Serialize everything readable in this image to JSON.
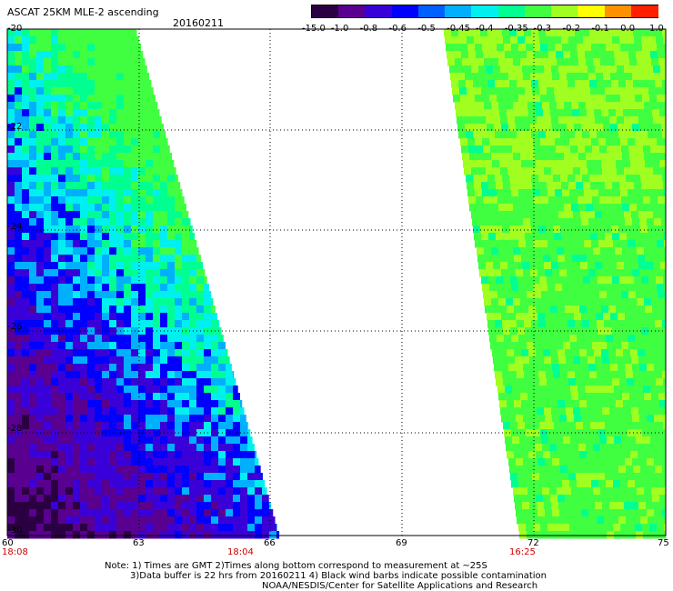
{
  "header": {
    "title": "ASCAT 25KM MLE-2 ascending",
    "date": "20160211"
  },
  "colorbar": {
    "labels": [
      "-15.0",
      "-1.0",
      "-0.8",
      "-0.6",
      "-0.5",
      "-0.45",
      "-0.4",
      "-0.35",
      "-0.3",
      "-0.2",
      "-0.1",
      "0.0",
      "1.0"
    ],
    "colors": [
      "#2a0042",
      "#5a0090",
      "#3a00d8",
      "#0000ff",
      "#0060ff",
      "#00b0ff",
      "#00f0f0",
      "#00ff90",
      "#40ff40",
      "#a0ff20",
      "#ffff00",
      "#ff9000",
      "#ff2000"
    ]
  },
  "axes": {
    "x_ticks": [
      "60",
      "63",
      "66",
      "69",
      "72",
      "75"
    ],
    "y_ticks": [
      "-20",
      "-22",
      "-24",
      "-26",
      "-28",
      "-30"
    ],
    "x_range": [
      60,
      75
    ],
    "y_range": [
      -20,
      -30
    ]
  },
  "times": [
    "18:08",
    "18:04",
    "16:25"
  ],
  "notes": {
    "line1": "Note: 1) Times are GMT 2)Times along bottom correspond to measurement at ~25S",
    "line2": "3)Data buffer is 22 hrs from 20160211 4) Black wind barbs indicate possible contamination",
    "line3": "NOAA/NESDIS/Center for Satellite Applications and Research"
  }
}
